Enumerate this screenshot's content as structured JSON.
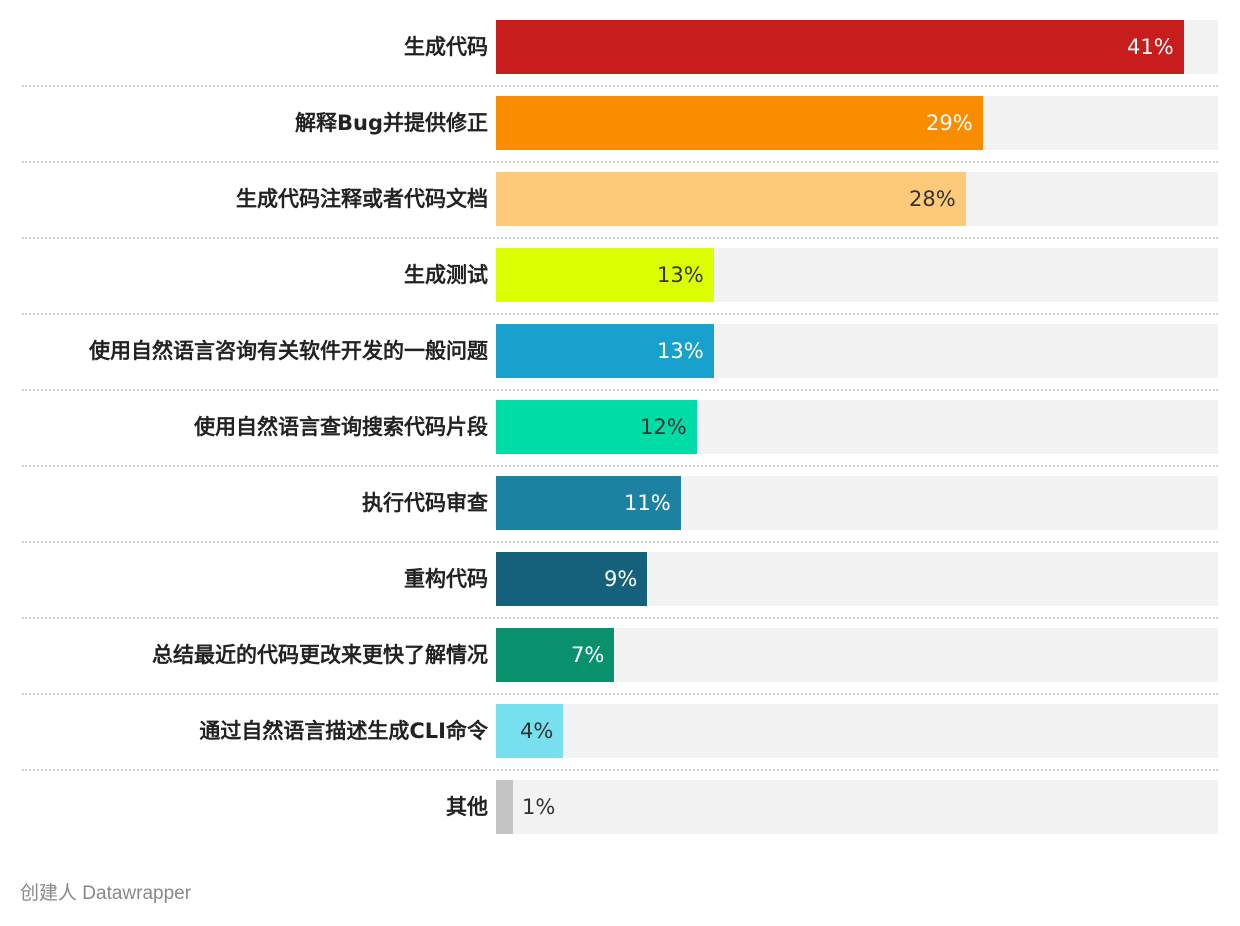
{
  "chart_data": {
    "type": "bar",
    "orientation": "horizontal",
    "xlim": [
      0,
      43
    ],
    "categories": [
      "生成代码",
      "解释Bug并提供修正",
      "生成代码注释或者代码文档",
      "生成测试",
      "使用自然语言咨询有关软件开发的一般问题",
      "使用自然语言查询搜索代码片段",
      "执行代码审查",
      "重构代码",
      "总结最近的代码更改来更快了解情况",
      "通过自然语言描述生成CLI命令",
      "其他"
    ],
    "values": [
      41,
      29,
      28,
      13,
      13,
      12,
      11,
      9,
      7,
      4,
      1
    ],
    "value_labels": [
      "41%",
      "29%",
      "28%",
      "13%",
      "13%",
      "12%",
      "11%",
      "9%",
      "7%",
      "4%",
      "1%"
    ],
    "colors": [
      "#c71e1d",
      "#fa8c00",
      "#fdca7a",
      "#dbff00",
      "#18a1cd",
      "#00dca6",
      "#1d81a2",
      "#15607a",
      "#09916e",
      "#77dfee",
      "#c4c4c4"
    ],
    "value_label_colors": [
      "#ffffff",
      "#ffffff",
      "#333333",
      "#333333",
      "#ffffff",
      "#333333",
      "#ffffff",
      "#ffffff",
      "#ffffff",
      "#333333",
      "#333333"
    ],
    "grid": false
  },
  "credit": "创建人 Datawrapper"
}
